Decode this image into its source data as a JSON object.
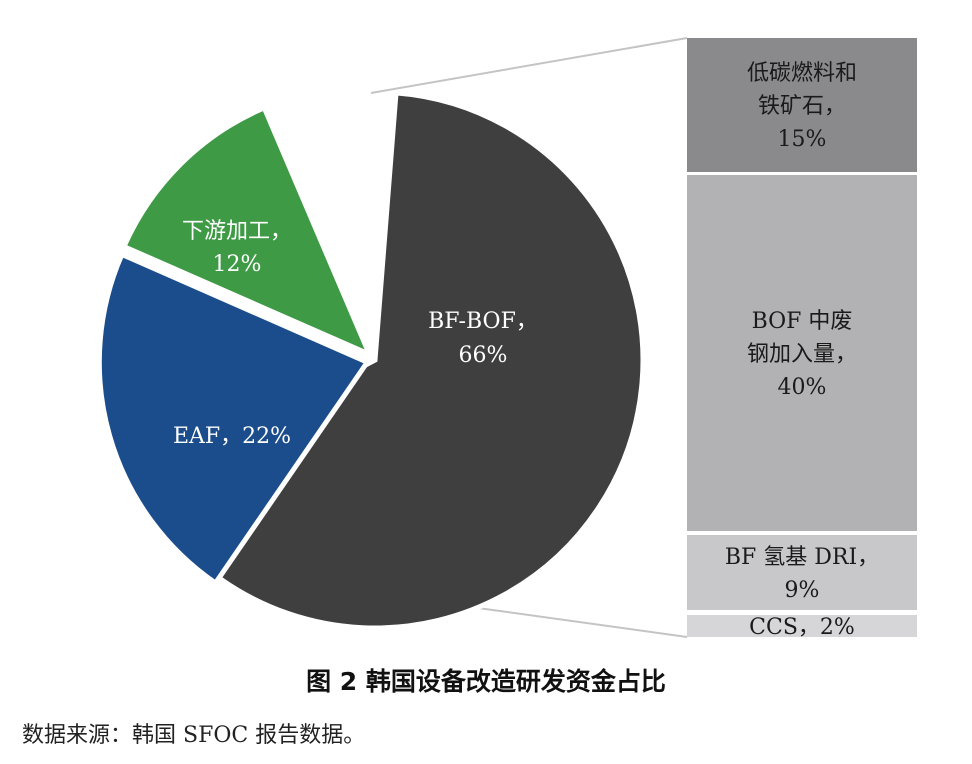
{
  "chart_data": {
    "type": "pie",
    "slices": [
      {
        "label": "BF-BOF，",
        "value_label": "66%",
        "value": 66,
        "color": "#3f3f40",
        "text_color": "#ffffff"
      },
      {
        "label": "EAF，22%",
        "value_label": "",
        "value": 22,
        "color": "#1b4d8c",
        "text_color": "#ffffff"
      },
      {
        "label": "下游加工，",
        "value_label": "12%",
        "value": 12,
        "color": "#3f9a46",
        "text_color": "#ffffff"
      }
    ],
    "breakdown_of": "BF-BOF，",
    "breakdown": [
      {
        "lines": [
          "低碳燃料和",
          "铁矿石，",
          "15%"
        ],
        "value": 15,
        "color": "#8a8a8c",
        "text_color": "#1a1a1a"
      },
      {
        "lines": [
          "BOF 中废",
          "钢加入量，",
          "40%"
        ],
        "value": 40,
        "color": "#b2b2b4",
        "text_color": "#1a1a1a"
      },
      {
        "lines": [
          "BF 氢基 DRI，",
          "9%"
        ],
        "value": 9,
        "color": "#c8c8ca",
        "text_color": "#1a1a1a"
      },
      {
        "lines": [
          "CCS，2%"
        ],
        "value": 2,
        "color": "#d6d6d8",
        "text_color": "#1a1a1a"
      }
    ]
  },
  "caption": "图 2  韩国设备改造研发资金占比",
  "source": "数据来源：韩国 SFOC 报告数据。"
}
